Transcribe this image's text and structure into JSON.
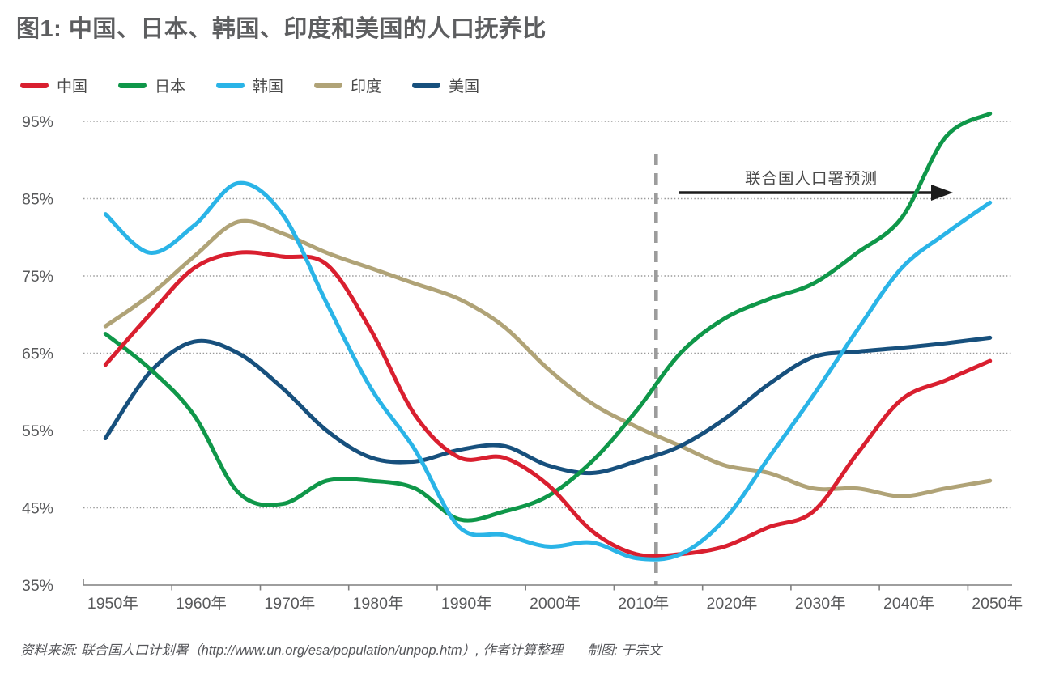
{
  "title": "图1: 中国、日本、韩国、印度和美国的人口抚养比",
  "legend": [
    {
      "key": "china",
      "label": "中国",
      "color": "#d91f2f"
    },
    {
      "key": "japan",
      "label": "日本",
      "color": "#0f9749"
    },
    {
      "key": "korea",
      "label": "韩国",
      "color": "#2ab4e7"
    },
    {
      "key": "india",
      "label": "印度",
      "color": "#b0a377"
    },
    {
      "key": "us",
      "label": "美国",
      "color": "#17507d"
    }
  ],
  "annotation": {
    "forecast_label": "联合国人口署预测",
    "divider_year": 2012,
    "arrow_direction": "right"
  },
  "footer": {
    "source": "资料来源: 联合国人口计划署（http://www.un.org/esa/population/unpop.htm）, 作者计算整理",
    "credit": "制图: 于宗文"
  },
  "chart_data": {
    "type": "line",
    "x": [
      1950,
      1955,
      1960,
      1965,
      1970,
      1975,
      1980,
      1985,
      1990,
      1995,
      2000,
      2005,
      2010,
      2015,
      2020,
      2025,
      2030,
      2035,
      2040,
      2045,
      2050
    ],
    "x_tick_labels": [
      "1950年",
      "1960年",
      "1970年",
      "1980年",
      "1990年",
      "2000年",
      "2010年",
      "2020年",
      "2030年",
      "2040年",
      "2050年"
    ],
    "y_ticks": [
      35,
      45,
      55,
      65,
      75,
      85,
      95
    ],
    "y_tick_labels": [
      "35%",
      "45%",
      "55%",
      "65%",
      "75%",
      "85%",
      "95%"
    ],
    "ylim": [
      35,
      95
    ],
    "grid": "dotted-horizontal",
    "legend_position": "top-left",
    "series": [
      {
        "key": "china",
        "name": "中国",
        "color": "#d91f2f",
        "values": [
          63.5,
          70,
          76,
          78,
          77.5,
          76.5,
          68,
          57,
          51.5,
          51.5,
          48,
          42,
          39,
          39,
          40,
          42.5,
          44.5,
          52,
          59,
          61.5,
          64
        ]
      },
      {
        "key": "japan",
        "name": "日本",
        "color": "#0f9749",
        "values": [
          67.5,
          63,
          57,
          47,
          45.5,
          48.5,
          48.5,
          47.5,
          43.5,
          44.5,
          46.5,
          51,
          57.5,
          65,
          69.5,
          72,
          74,
          78,
          82.5,
          93,
          96
        ]
      },
      {
        "key": "korea",
        "name": "韩国",
        "color": "#2ab4e7",
        "values": [
          83,
          78,
          81.5,
          87,
          83,
          71.5,
          60.5,
          52.5,
          42.5,
          41.5,
          40,
          40.5,
          38.5,
          39,
          43.5,
          51.5,
          59.5,
          68,
          76,
          80.5,
          84.5
        ]
      },
      {
        "key": "india",
        "name": "印度",
        "color": "#b0a377",
        "values": [
          68.5,
          72.5,
          77.5,
          82,
          80.5,
          78,
          76,
          74,
          72,
          68.5,
          63,
          58.5,
          55.5,
          53,
          50.5,
          49.5,
          47.5,
          47.5,
          46.5,
          47.5,
          48.5
        ]
      },
      {
        "key": "us",
        "name": "美国",
        "color": "#17507d",
        "values": [
          54,
          62.5,
          66.5,
          65,
          60.5,
          55,
          51.5,
          51,
          52.5,
          53,
          50.5,
          49.5,
          51,
          53,
          56.5,
          61,
          64.5,
          65.2,
          65.7,
          66.3,
          67
        ]
      }
    ],
    "draw_order": [
      "india",
      "us",
      "japan",
      "china",
      "korea"
    ]
  }
}
